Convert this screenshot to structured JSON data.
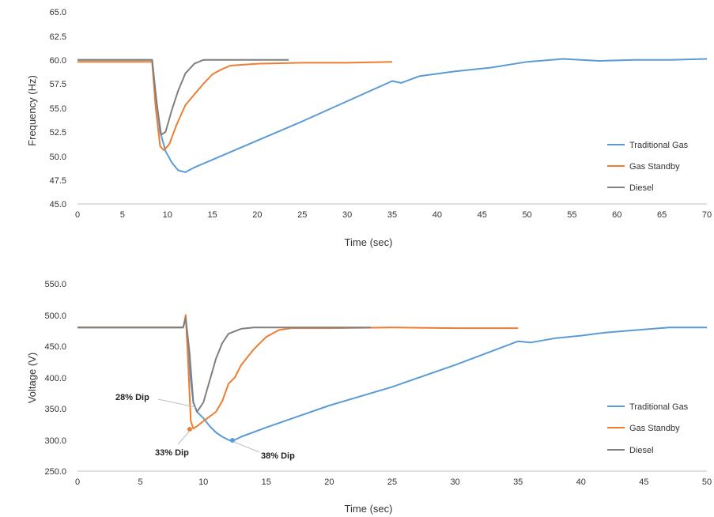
{
  "chart_data": [
    {
      "type": "line",
      "xlabel": "Time (sec)",
      "ylabel": "Frequency (Hz)",
      "xlim": [
        0,
        70
      ],
      "ylim": [
        45,
        65
      ],
      "xticks": [
        "0",
        "5",
        "10",
        "15",
        "20",
        "25",
        "30",
        "35",
        "40",
        "45",
        "50",
        "55",
        "60",
        "65",
        "70"
      ],
      "yticks": [
        "45.0",
        "47.5",
        "50.0",
        "52.5",
        "55.0",
        "57.5",
        "60.0",
        "62.5",
        "65.0"
      ],
      "legend_position": "right",
      "series": [
        {
          "name": "Traditional Gas",
          "color": "#5b9bd5",
          "x": [
            0,
            8.3,
            8.7,
            9.2,
            9.8,
            10.5,
            11.2,
            12.0,
            13.0,
            15,
            20,
            25,
            30,
            35,
            36,
            38,
            42,
            46,
            50,
            54,
            58,
            62,
            66,
            70
          ],
          "y": [
            60.0,
            60.0,
            56.5,
            52.5,
            50.5,
            49.3,
            48.5,
            48.3,
            48.8,
            49.6,
            51.6,
            53.6,
            55.7,
            57.8,
            57.6,
            58.3,
            58.8,
            59.2,
            59.8,
            60.1,
            59.9,
            60.0,
            60.0,
            60.1
          ]
        },
        {
          "name": "Gas Standby",
          "color": "#ed7d31",
          "x": [
            0,
            8.3,
            8.7,
            9.2,
            9.6,
            10.2,
            11.0,
            12.0,
            13.0,
            14.0,
            15.0,
            16.0,
            17.0,
            20,
            25,
            30,
            35
          ],
          "y": [
            59.8,
            59.8,
            55.0,
            51.0,
            50.6,
            51.2,
            53.2,
            55.3,
            56.4,
            57.5,
            58.5,
            59.0,
            59.4,
            59.6,
            59.7,
            59.7,
            59.8
          ]
        },
        {
          "name": "Diesel",
          "color": "#7f7f7f",
          "x": [
            0,
            8.3,
            8.8,
            9.3,
            9.8,
            10.5,
            11.2,
            12.0,
            13.0,
            14.0,
            16.0,
            20,
            23.5
          ],
          "y": [
            60.0,
            60.0,
            55.5,
            52.2,
            52.5,
            54.8,
            56.8,
            58.6,
            59.6,
            60.0,
            60.0,
            60.0,
            60.0
          ]
        }
      ]
    },
    {
      "type": "line",
      "xlabel": "Time (sec)",
      "ylabel": "Voltage (V)",
      "xlim": [
        0,
        50
      ],
      "ylim": [
        250,
        550
      ],
      "xticks": [
        "0",
        "5",
        "10",
        "15",
        "20",
        "25",
        "30",
        "35",
        "40",
        "45",
        "50"
      ],
      "yticks": [
        "250.0",
        "300.0",
        "350.0",
        "400.0",
        "450.0",
        "500.0",
        "550.0"
      ],
      "legend_position": "right",
      "series": [
        {
          "name": "Traditional Gas",
          "color": "#5b9bd5",
          "x": [
            0,
            8.4,
            8.6,
            8.8,
            9.0,
            9.2,
            9.5,
            10.0,
            10.5,
            11.0,
            11.5,
            12.0,
            12.3,
            13,
            15,
            20,
            25,
            30,
            35,
            36,
            38,
            40,
            42,
            45,
            47,
            50
          ],
          "y": [
            480,
            480,
            495,
            440,
            395,
            360,
            345,
            335,
            322,
            312,
            305,
            300,
            298,
            305,
            320,
            355,
            385,
            420,
            458,
            456,
            463,
            467,
            472,
            477,
            480,
            480
          ]
        },
        {
          "name": "Gas Standby",
          "color": "#ed7d31",
          "x": [
            0,
            8.4,
            8.6,
            8.8,
            9.0,
            9.2,
            9.5,
            10.0,
            11.0,
            11.5,
            12.0,
            12.5,
            13.0,
            14.0,
            15.0,
            16.0,
            17.0,
            20,
            25,
            30,
            35
          ],
          "y": [
            480,
            480,
            500,
            420,
            330,
            318,
            322,
            330,
            345,
            362,
            390,
            400,
            420,
            445,
            465,
            476,
            479,
            479,
            480,
            479,
            479
          ]
        },
        {
          "name": "Diesel",
          "color": "#7f7f7f",
          "x": [
            0,
            8.4,
            8.6,
            8.9,
            9.2,
            9.5,
            10.0,
            10.5,
            11.0,
            11.5,
            12.0,
            13.0,
            14.0,
            16.0,
            20,
            23.3
          ],
          "y": [
            480,
            480,
            495,
            440,
            360,
            345,
            360,
            395,
            430,
            455,
            470,
            478,
            480,
            480,
            480,
            480
          ]
        }
      ],
      "annotations": [
        {
          "label": "28% Dip"
        },
        {
          "label": "33% Dip"
        },
        {
          "label": "38% Dip"
        }
      ]
    }
  ]
}
